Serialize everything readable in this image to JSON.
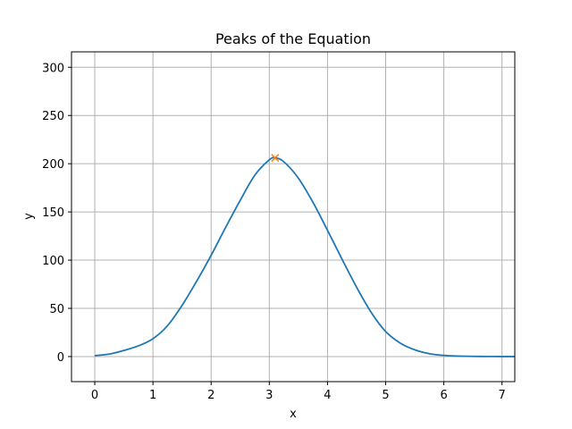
{
  "chart_data": {
    "type": "line",
    "title": "Peaks of the Equation",
    "xlabel": "x",
    "ylabel": "y",
    "xlim": [
      -0.4,
      7.22
    ],
    "ylim": [
      -26,
      316
    ],
    "xticks": [
      0,
      1,
      2,
      3,
      4,
      5,
      6,
      7
    ],
    "yticks": [
      0,
      50,
      100,
      150,
      200,
      250,
      300
    ],
    "grid": true,
    "series": [
      {
        "color": "#1f77b4",
        "x": [
          0,
          0.25,
          0.5,
          0.75,
          1,
          1.25,
          1.5,
          1.75,
          2,
          2.25,
          2.5,
          2.75,
          3,
          3.1,
          3.25,
          3.5,
          3.75,
          4,
          4.25,
          4.5,
          4.75,
          5,
          5.25,
          5.5,
          5.75,
          6,
          6.25,
          6.5,
          6.75,
          7,
          7.22
        ],
        "y": [
          1,
          2.6,
          6.3,
          11.1,
          18.5,
          32,
          53,
          78,
          105,
          134,
          162,
          188,
          204,
          206,
          202,
          185,
          160,
          131,
          101,
          72,
          46,
          26,
          14,
          7,
          3,
          1.2,
          0.5,
          0.2,
          0.1,
          0,
          0
        ]
      }
    ],
    "peaks": [
      {
        "x": 3.1,
        "y": 206,
        "marker": "x",
        "color": "#ff7f0e"
      }
    ]
  }
}
